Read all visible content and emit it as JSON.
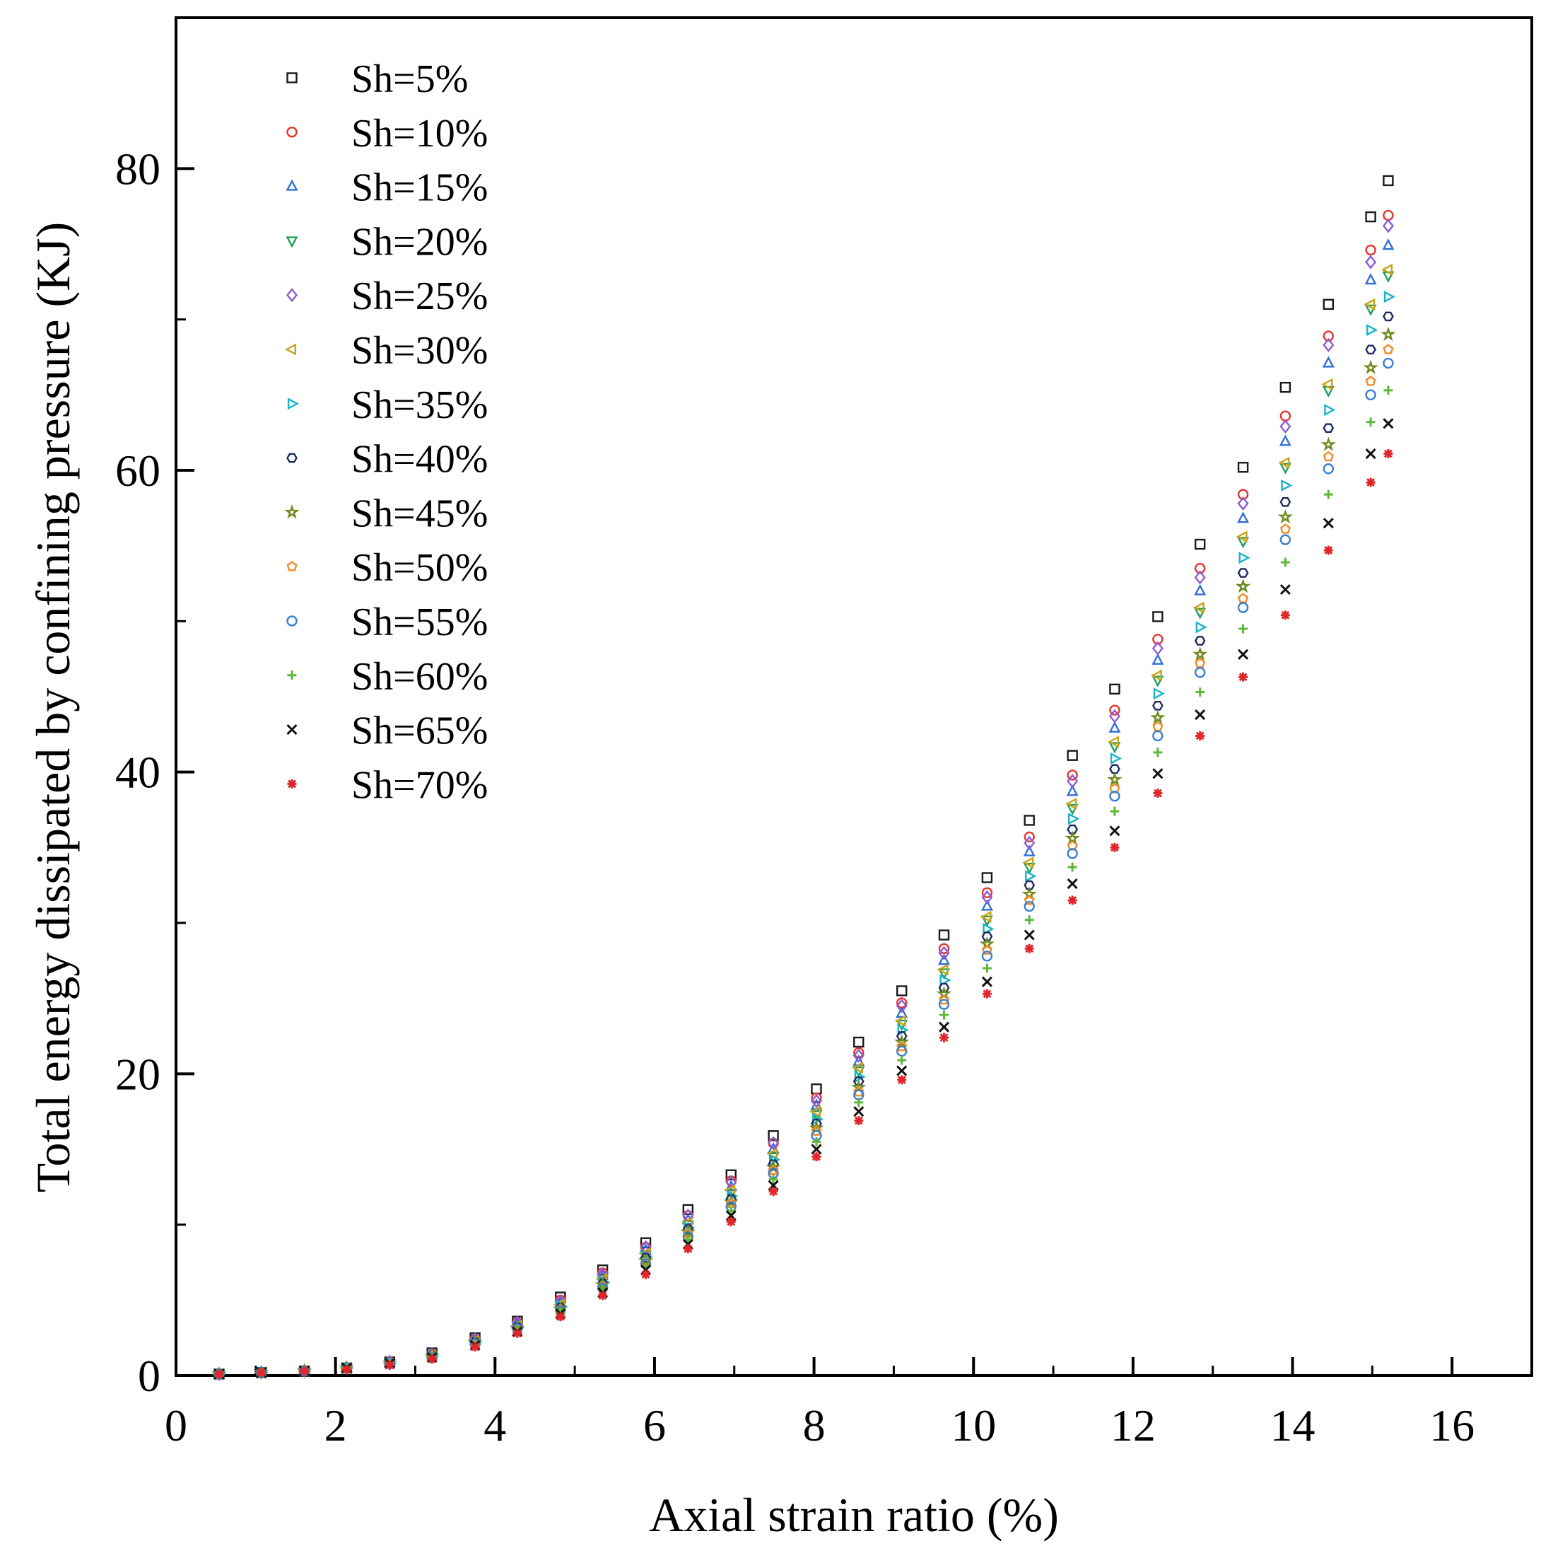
{
  "chart_data": {
    "type": "scatter",
    "title": "",
    "xlabel": "Axial strain ratio (%)",
    "ylabel": "Total energy dissipated by confining pressure (KJ)",
    "xlim": [
      0,
      17
    ],
    "ylim": [
      0,
      90
    ],
    "x_ticks": [
      0,
      2,
      4,
      6,
      8,
      10,
      12,
      14,
      16
    ],
    "y_ticks": [
      0,
      20,
      40,
      60,
      80
    ],
    "x_tick_labels": [
      "0",
      "2",
      "4",
      "6",
      "8",
      "10",
      "12",
      "14",
      "16"
    ],
    "y_tick_labels": [
      "0",
      "20",
      "40",
      "60",
      "80"
    ],
    "legend_position": "top-left",
    "grid": false,
    "series": [
      {
        "name": "Sh=5%",
        "color": "#1a1a1a",
        "marker": "square",
        "x": [
          0.54,
          1.07,
          1.61,
          2.14,
          2.68,
          3.21,
          3.75,
          4.28,
          4.82,
          5.35,
          5.89,
          6.42,
          6.96,
          7.49,
          8.03,
          8.56,
          9.1,
          9.63,
          10.17,
          10.7,
          11.24,
          11.77,
          12.31,
          12.84,
          13.38,
          13.91,
          14.45,
          14.98,
          15.2
        ],
        "y": [
          0.1,
          0.2,
          0.3,
          0.5,
          0.9,
          1.5,
          2.5,
          3.6,
          5.2,
          7.0,
          8.8,
          11.0,
          13.3,
          15.9,
          19.0,
          22.1,
          25.5,
          29.2,
          33.0,
          36.8,
          41.1,
          45.5,
          50.3,
          55.1,
          60.2,
          65.5,
          71.0,
          76.8,
          79.2
        ]
      },
      {
        "name": "Sh=10%",
        "color": "#e8332a",
        "marker": "circle",
        "x": [
          0.54,
          1.07,
          1.61,
          2.14,
          2.68,
          3.21,
          3.75,
          4.28,
          4.82,
          5.35,
          5.89,
          6.42,
          6.96,
          7.49,
          8.03,
          8.56,
          9.1,
          9.63,
          10.17,
          10.7,
          11.24,
          11.77,
          12.31,
          12.84,
          13.38,
          13.91,
          14.45,
          14.98,
          15.2
        ],
        "y": [
          0.1,
          0.2,
          0.3,
          0.5,
          0.9,
          1.4,
          2.4,
          3.5,
          5.0,
          6.8,
          8.5,
          10.6,
          12.9,
          15.4,
          18.4,
          21.4,
          24.7,
          28.3,
          32.0,
          35.7,
          39.8,
          44.1,
          48.8,
          53.5,
          58.4,
          63.6,
          68.9,
          74.6,
          76.9
        ]
      },
      {
        "name": "Sh=15%",
        "color": "#2f6fd6",
        "marker": "triangle-up",
        "x": [
          0.54,
          1.07,
          1.61,
          2.14,
          2.68,
          3.21,
          3.75,
          4.28,
          4.82,
          5.35,
          5.89,
          6.42,
          6.96,
          7.49,
          8.03,
          8.56,
          9.1,
          9.63,
          10.17,
          10.7,
          11.24,
          11.77,
          12.31,
          12.84,
          13.38,
          13.91,
          14.45,
          14.98,
          15.2
        ],
        "y": [
          0.1,
          0.2,
          0.3,
          0.5,
          0.9,
          1.4,
          2.3,
          3.4,
          4.8,
          6.6,
          8.3,
          10.3,
          12.5,
          15.0,
          17.9,
          20.8,
          24.0,
          27.5,
          31.1,
          34.7,
          38.7,
          42.9,
          47.4,
          52.0,
          56.8,
          61.9,
          67.1,
          72.6,
          74.9
        ]
      },
      {
        "name": "Sh=20%",
        "color": "#1e9e5a",
        "marker": "triangle-down",
        "x": [
          0.54,
          1.07,
          1.61,
          2.14,
          2.68,
          3.21,
          3.75,
          4.28,
          4.82,
          5.35,
          5.89,
          6.42,
          6.96,
          7.49,
          8.03,
          8.56,
          9.1,
          9.63,
          10.17,
          10.7,
          11.24,
          11.77,
          12.31,
          12.84,
          13.38,
          13.91,
          14.45,
          14.98,
          15.2
        ],
        "y": [
          0.1,
          0.2,
          0.3,
          0.5,
          0.8,
          1.3,
          2.2,
          3.3,
          4.6,
          6.3,
          8.0,
          10.0,
          12.1,
          14.5,
          17.3,
          20.2,
          23.3,
          26.7,
          30.2,
          33.7,
          37.6,
          41.7,
          46.1,
          50.6,
          55.3,
          60.2,
          65.3,
          70.7,
          72.9
        ]
      },
      {
        "name": "Sh=25%",
        "color": "#8b5cd6",
        "marker": "diamond",
        "x": [
          0.54,
          1.07,
          1.61,
          2.14,
          2.68,
          3.21,
          3.75,
          4.28,
          4.82,
          5.35,
          5.89,
          6.42,
          6.96,
          7.49,
          8.03,
          8.56,
          9.1,
          9.63,
          10.17,
          10.7,
          11.24,
          11.77,
          12.31,
          12.84,
          13.38,
          13.91,
          14.45,
          14.98,
          15.2
        ],
        "y": [
          0.1,
          0.2,
          0.3,
          0.5,
          0.9,
          1.4,
          2.4,
          3.5,
          4.9,
          6.7,
          8.5,
          10.6,
          12.8,
          15.4,
          18.2,
          21.2,
          24.5,
          28.0,
          31.7,
          35.3,
          39.4,
          43.7,
          48.2,
          52.9,
          57.8,
          62.9,
          68.3,
          73.8,
          76.2
        ]
      },
      {
        "name": "Sh=30%",
        "color": "#c9a316",
        "marker": "triangle-left",
        "x": [
          0.54,
          1.07,
          1.61,
          2.14,
          2.68,
          3.21,
          3.75,
          4.28,
          4.82,
          5.35,
          5.89,
          6.42,
          6.96,
          7.49,
          8.03,
          8.56,
          9.1,
          9.63,
          10.17,
          10.7,
          11.24,
          11.77,
          12.31,
          12.84,
          13.38,
          13.91,
          14.45,
          14.98,
          15.2
        ],
        "y": [
          0.1,
          0.2,
          0.3,
          0.5,
          0.8,
          1.3,
          2.3,
          3.3,
          4.7,
          6.4,
          8.1,
          10.1,
          12.3,
          14.7,
          17.5,
          20.4,
          23.5,
          26.9,
          30.4,
          34.0,
          37.9,
          42.0,
          46.4,
          50.9,
          55.6,
          60.5,
          65.7,
          71.0,
          73.3
        ]
      },
      {
        "name": "Sh=35%",
        "color": "#17b4c9",
        "marker": "triangle-right",
        "x": [
          0.54,
          1.07,
          1.61,
          2.14,
          2.68,
          3.21,
          3.75,
          4.28,
          4.82,
          5.35,
          5.89,
          6.42,
          6.96,
          7.49,
          8.03,
          8.56,
          9.1,
          9.63,
          10.17,
          10.7,
          11.24,
          11.77,
          12.31,
          12.84,
          13.38,
          13.91,
          14.45,
          14.98,
          15.2
        ],
        "y": [
          0.1,
          0.2,
          0.3,
          0.5,
          0.8,
          1.3,
          2.2,
          3.2,
          4.6,
          6.2,
          7.9,
          9.8,
          11.9,
          14.3,
          17.0,
          19.8,
          22.9,
          26.2,
          29.6,
          33.1,
          36.9,
          40.9,
          45.2,
          49.6,
          54.2,
          59.0,
          64.0,
          69.3,
          71.5
        ]
      },
      {
        "name": "Sh=40%",
        "color": "#1f2a63",
        "marker": "hexagon",
        "x": [
          0.54,
          1.07,
          1.61,
          2.14,
          2.68,
          3.21,
          3.75,
          4.28,
          4.82,
          5.35,
          5.89,
          6.42,
          6.96,
          7.49,
          8.03,
          8.56,
          9.1,
          9.63,
          10.17,
          10.7,
          11.24,
          11.77,
          12.31,
          12.84,
          13.38,
          13.91,
          14.45,
          14.98,
          15.2
        ],
        "y": [
          0.1,
          0.2,
          0.3,
          0.5,
          0.8,
          1.3,
          2.2,
          3.2,
          4.5,
          6.1,
          7.8,
          9.7,
          11.7,
          14.0,
          16.7,
          19.5,
          22.5,
          25.7,
          29.1,
          32.5,
          36.2,
          40.2,
          44.4,
          48.7,
          53.2,
          57.9,
          62.8,
          68.0,
          70.2
        ]
      },
      {
        "name": "Sh=45%",
        "color": "#6e8b1e",
        "marker": "star",
        "x": [
          0.54,
          1.07,
          1.61,
          2.14,
          2.68,
          3.21,
          3.75,
          4.28,
          4.82,
          5.35,
          5.89,
          6.42,
          6.96,
          7.49,
          8.03,
          8.56,
          9.1,
          9.63,
          10.17,
          10.7,
          11.24,
          11.77,
          12.31,
          12.84,
          13.38,
          13.91,
          14.45,
          14.98,
          15.2
        ],
        "y": [
          0.1,
          0.2,
          0.3,
          0.5,
          0.8,
          1.3,
          2.2,
          3.1,
          4.4,
          6.0,
          7.6,
          9.5,
          11.5,
          13.8,
          16.4,
          19.1,
          22.1,
          25.3,
          28.6,
          31.9,
          35.6,
          39.5,
          43.6,
          47.8,
          52.3,
          56.9,
          61.7,
          66.8,
          69.0
        ]
      },
      {
        "name": "Sh=50%",
        "color": "#f08a24",
        "marker": "pentagon",
        "x": [
          0.54,
          1.07,
          1.61,
          2.14,
          2.68,
          3.21,
          3.75,
          4.28,
          4.82,
          5.35,
          5.89,
          6.42,
          6.96,
          7.49,
          8.03,
          8.56,
          9.1,
          9.63,
          10.17,
          10.7,
          11.24,
          11.77,
          12.31,
          12.84,
          13.38,
          13.91,
          14.45,
          14.98,
          15.2
        ],
        "y": [
          0.1,
          0.2,
          0.3,
          0.5,
          0.8,
          1.3,
          2.1,
          3.1,
          4.4,
          5.9,
          7.5,
          9.4,
          11.4,
          13.6,
          16.2,
          18.8,
          21.8,
          24.9,
          28.2,
          31.5,
          35.1,
          38.9,
          43.0,
          47.2,
          51.5,
          56.1,
          60.9,
          65.9,
          68.0
        ]
      },
      {
        "name": "Sh=55%",
        "color": "#3a7fd1",
        "marker": "circle",
        "x": [
          0.54,
          1.07,
          1.61,
          2.14,
          2.68,
          3.21,
          3.75,
          4.28,
          4.82,
          5.35,
          5.89,
          6.42,
          6.96,
          7.49,
          8.03,
          8.56,
          9.1,
          9.63,
          10.17,
          10.7,
          11.24,
          11.77,
          12.31,
          12.84,
          13.38,
          13.91,
          14.45,
          14.98,
          15.2
        ],
        "y": [
          0.1,
          0.2,
          0.3,
          0.5,
          0.8,
          1.2,
          2.1,
          3.1,
          4.3,
          5.8,
          7.4,
          9.2,
          11.2,
          13.4,
          15.9,
          18.6,
          21.5,
          24.6,
          27.8,
          31.1,
          34.6,
          38.4,
          42.4,
          46.6,
          50.9,
          55.4,
          60.1,
          65.0,
          67.1
        ]
      },
      {
        "name": "Sh=60%",
        "color": "#5db83a",
        "marker": "plus",
        "x": [
          0.54,
          1.07,
          1.61,
          2.14,
          2.68,
          3.21,
          3.75,
          4.28,
          4.82,
          5.35,
          5.89,
          6.42,
          6.96,
          7.49,
          8.03,
          8.56,
          9.1,
          9.63,
          10.17,
          10.7,
          11.24,
          11.77,
          12.31,
          12.84,
          13.38,
          13.91,
          14.45,
          14.98,
          15.2
        ],
        "y": [
          0.1,
          0.2,
          0.3,
          0.5,
          0.8,
          1.2,
          2.0,
          3.0,
          4.2,
          5.7,
          7.2,
          9.0,
          10.9,
          13.0,
          15.5,
          18.1,
          20.9,
          23.9,
          27.0,
          30.2,
          33.7,
          37.4,
          41.3,
          45.3,
          49.5,
          53.9,
          58.4,
          63.2,
          65.3
        ]
      },
      {
        "name": "Sh=65%",
        "color": "#111111",
        "marker": "cross",
        "x": [
          0.54,
          1.07,
          1.61,
          2.14,
          2.68,
          3.21,
          3.75,
          4.28,
          4.82,
          5.35,
          5.89,
          6.42,
          6.96,
          7.49,
          8.03,
          8.56,
          9.1,
          9.63,
          10.17,
          10.7,
          11.24,
          11.77,
          12.31,
          12.84,
          13.38,
          13.91,
          14.45,
          14.98,
          15.2
        ],
        "y": [
          0.1,
          0.2,
          0.3,
          0.5,
          0.8,
          1.2,
          2.0,
          2.9,
          4.1,
          5.5,
          7.0,
          8.7,
          10.6,
          12.6,
          15.0,
          17.5,
          20.2,
          23.1,
          26.1,
          29.2,
          32.6,
          36.1,
          39.9,
          43.8,
          47.8,
          52.1,
          56.5,
          61.1,
          63.1
        ]
      },
      {
        "name": "Sh=70%",
        "color": "#e0262a",
        "marker": "asterisk",
        "x": [
          0.54,
          1.07,
          1.61,
          2.14,
          2.68,
          3.21,
          3.75,
          4.28,
          4.82,
          5.35,
          5.89,
          6.42,
          6.96,
          7.49,
          8.03,
          8.56,
          9.1,
          9.63,
          10.17,
          10.7,
          11.24,
          11.77,
          12.31,
          12.84,
          13.38,
          13.91,
          14.45,
          14.98,
          15.2
        ],
        "y": [
          0.1,
          0.2,
          0.3,
          0.4,
          0.7,
          1.1,
          1.9,
          2.8,
          3.9,
          5.3,
          6.7,
          8.4,
          10.2,
          12.2,
          14.5,
          16.9,
          19.6,
          22.4,
          25.3,
          28.3,
          31.5,
          35.0,
          38.6,
          42.4,
          46.3,
          50.4,
          54.7,
          59.2,
          61.1
        ]
      }
    ]
  }
}
